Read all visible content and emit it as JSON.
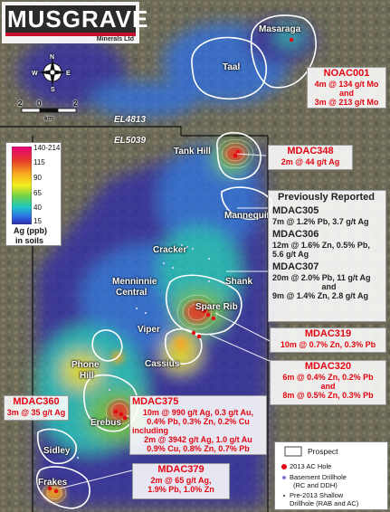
{
  "logo": {
    "name": "MUSGRAVE",
    "sub": "Minerals Ltd",
    "colors": {
      "red": "#c8102e",
      "dark": "#2b2b2b"
    }
  },
  "north_arrow": {
    "n": "N",
    "s": "S",
    "e": "E",
    "w": "W"
  },
  "scale_bar": {
    "labels": [
      "2",
      "0",
      "2"
    ],
    "unit": "km"
  },
  "tenements": [
    "EL4813",
    "EL5039"
  ],
  "places": {
    "masaraga": "Masaraga",
    "taal": "Taal",
    "tank_hill": "Tank Hill",
    "mannequin": "Mannequin",
    "cracker": "Cracker",
    "menninnie": "Menninnie",
    "central": "Central",
    "shank": "Shank",
    "spare_rib": "Spare Rib",
    "viper": "Viper",
    "cassius": "Cassius",
    "phone": "Phone",
    "hill": "Hill",
    "erebus": "Erebus",
    "sidley": "Sidley",
    "frakes": "Frakes"
  },
  "callouts": {
    "noac001": {
      "id": "NOAC001",
      "l1": "4m @ 134 g/t Mo",
      "l2": "and",
      "l3": "3m @ 213 g/t Mo"
    },
    "mdac348": {
      "id": "MDAC348",
      "l1": "2m @ 44 g/t Ag"
    },
    "prev": {
      "title": "Previously Reported",
      "mdac305": {
        "id": "MDAC305",
        "l1": "7m @ 1.2% Pb, 3.7 g/t Ag"
      },
      "mdac306": {
        "id": "MDAC306",
        "l1": "12m @ 1.6% Zn, 0.5% Pb,",
        "l2": "5.6 g/t Ag"
      },
      "mdac307": {
        "id": "MDAC307",
        "l1": "20m @  2.0% Pb, 11 g/t Ag",
        "l2": "and",
        "l3": "9m @ 1.4% Zn, 2.8 g/t Ag"
      }
    },
    "mdac319": {
      "id": "MDAC319",
      "l1": "10m @  0.7% Zn, 0.3% Pb"
    },
    "mdac320": {
      "id": "MDAC320",
      "l1": "6m @  0.4% Zn, 0.2% Pb",
      "l2": "and",
      "l3": "8m @  0.5% Zn, 0.3% Pb"
    },
    "mdac360": {
      "id": "MDAC360",
      "l1": "3m @ 35 g/t Ag"
    },
    "mdac375": {
      "id": "MDAC375",
      "l1": "10m @ 990 g/t Ag, 0.3 g/t Au,",
      "l2": "0.4% Pb, 0.3% Zn, 0.2% Cu",
      "l3": "including",
      "l4": "2m @ 3942 g/t Ag, 1.0 g/t Au",
      "l5": "0.9% Cu, 0.8% Zn, 0.7% Pb"
    },
    "mdac379": {
      "id": "MDAC379",
      "l1": "2m @ 65 g/t Ag,",
      "l2": "1.9% Pb, 1.0% Zn"
    }
  },
  "scale_legend": {
    "ticks": [
      "140-214",
      "115",
      "90",
      "65",
      "40",
      "15"
    ],
    "title": "Ag (ppb)",
    "subtitle": "in soils",
    "colors": [
      "#e8007a",
      "#e53b2a",
      "#f7a51f",
      "#f4ee1e",
      "#6cd04a",
      "#1fc6c8",
      "#2b6fe6",
      "#2e2aa8"
    ]
  },
  "symbol_legend": {
    "prospect": "Prospect",
    "ac_hole": "2013 AC Hole",
    "basement_1": "Basement Drillhole",
    "basement_2": "(RC and DDH)",
    "shallow_1": "Pre-2013 Shallow",
    "shallow_2": "Drillhole (RAB and AC)"
  }
}
